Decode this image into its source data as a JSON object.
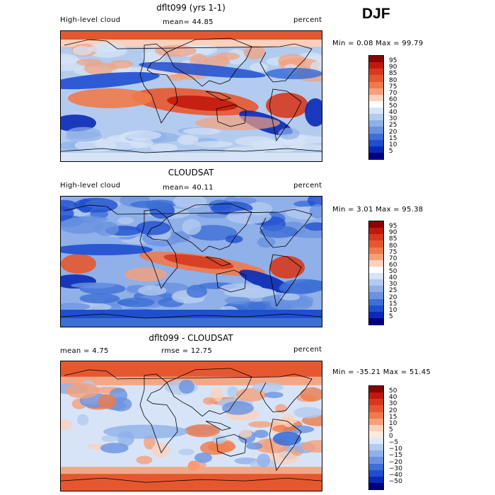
{
  "season": "DJF",
  "panels": [
    {
      "id": "model",
      "title": "dflt099 (yrs 1-1)",
      "left_label": "High-level cloud",
      "center_label": "mean=  44.85",
      "right_label": "percent",
      "minmax": "Min =   0.08 Max =  99.79",
      "colorbar_labels": [
        "95",
        "90",
        "85",
        "80",
        "75",
        "70",
        "60",
        "50",
        "40",
        "30",
        "25",
        "20",
        "15",
        "10",
        "5"
      ],
      "colorbar_colors": [
        "#8b0000",
        "#c2180c",
        "#d63a1e",
        "#e5582f",
        "#ef7a4b",
        "#f5a07a",
        "#fbd1bb",
        "#ffffff",
        "#d7e4f7",
        "#b3cbef",
        "#8fb0e8",
        "#6a92e0",
        "#3d6fd6",
        "#1f4fd0",
        "#0a2ab5",
        "#00007f"
      ],
      "panel_type": "model"
    },
    {
      "id": "obs",
      "title": "CLOUDSAT",
      "left_label": "High-level cloud",
      "center_label": "mean=  40.11",
      "right_label": "percent",
      "minmax": "Min =   3.01 Max =  95.38",
      "colorbar_labels": [
        "95",
        "90",
        "85",
        "80",
        "75",
        "70",
        "60",
        "50",
        "40",
        "30",
        "25",
        "20",
        "15",
        "10",
        "5"
      ],
      "colorbar_colors": [
        "#8b0000",
        "#c2180c",
        "#d63a1e",
        "#e5582f",
        "#ef7a4b",
        "#f5a07a",
        "#fbd1bb",
        "#ffffff",
        "#d7e4f7",
        "#b3cbef",
        "#8fb0e8",
        "#6a92e0",
        "#3d6fd6",
        "#1f4fd0",
        "#0a2ab5",
        "#00007f"
      ],
      "panel_type": "obs"
    },
    {
      "id": "diff",
      "title": "dflt099 - CLOUDSAT",
      "left_label": "mean =    4.75",
      "center_label": "rmse =   12.75",
      "right_label": "percent",
      "minmax": "Min = -35.21 Max =  51.45",
      "colorbar_labels": [
        "50",
        "40",
        "30",
        "20",
        "15",
        "10",
        "5",
        "0",
        "−5",
        "−10",
        "−15",
        "−20",
        "−30",
        "−40",
        "−50"
      ],
      "colorbar_colors": [
        "#8b0000",
        "#c2180c",
        "#d63a1e",
        "#e5582f",
        "#ef7a4b",
        "#f5a07a",
        "#fbd1bb",
        "#ffe9dd",
        "#dde8f8",
        "#b3cbef",
        "#8fb0e8",
        "#6a92e0",
        "#3d6fd6",
        "#1f4fd0",
        "#0a2ab5",
        "#00007f"
      ],
      "panel_type": "diff"
    }
  ]
}
